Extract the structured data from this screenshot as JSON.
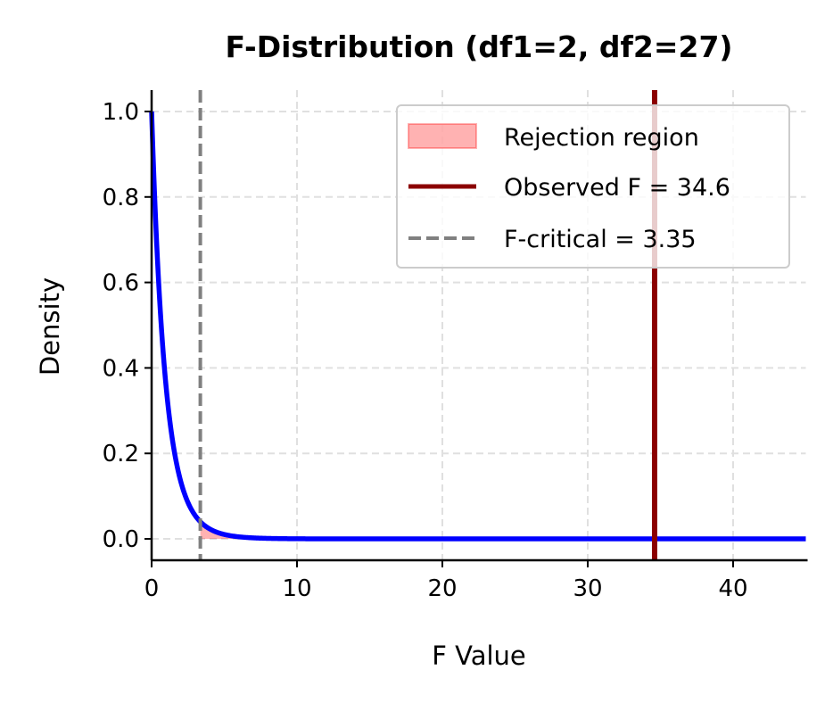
{
  "chart_data": {
    "type": "line",
    "title": "F-Distribution (df1=2, df2=27)",
    "xlabel": "F Value",
    "ylabel": "Density",
    "xlim": [
      0,
      45
    ],
    "ylim": [
      -0.05,
      1.05
    ],
    "xticks": [
      0,
      10,
      20,
      30,
      40
    ],
    "xtick_labels": [
      "0",
      "10",
      "20",
      "30",
      "40"
    ],
    "yticks": [
      0.0,
      0.2,
      0.4,
      0.6,
      0.8,
      1.0
    ],
    "ytick_labels": [
      "0.0",
      "0.2",
      "0.4",
      "0.6",
      "0.8",
      "1.0"
    ],
    "grid": true,
    "distribution": {
      "df1": 2,
      "df2": 27,
      "color": "#0000ff"
    },
    "rejection_region": {
      "from": 3.35,
      "to": 45,
      "color": "#ff0000",
      "alpha": 0.3,
      "label": "Rejection region"
    },
    "observed": {
      "value": 34.6,
      "color": "#8b0000",
      "label": "Observed F = 34.6"
    },
    "critical": {
      "value": 3.35,
      "color": "#808080",
      "label": "F-critical = 3.35"
    },
    "legend": {
      "position": "top-right"
    }
  }
}
